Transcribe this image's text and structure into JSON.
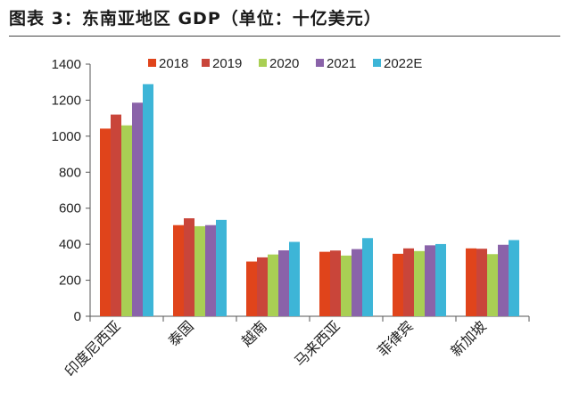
{
  "figure_title": "图表 3：东南亚地区 GDP（单位：十亿美元）",
  "chart_data": {
    "type": "bar",
    "categories": [
      "印度尼西亚",
      "泰国",
      "越南",
      "马来西亚",
      "菲律宾",
      "新加坡"
    ],
    "series": [
      {
        "name": "2018",
        "color": "#e0441b",
        "values": [
          1042,
          506,
          304,
          358,
          347,
          377
        ]
      },
      {
        "name": "2019",
        "color": "#c9453a",
        "values": [
          1120,
          544,
          327,
          365,
          377,
          375
        ]
      },
      {
        "name": "2020",
        "color": "#a9cf54",
        "values": [
          1060,
          500,
          343,
          337,
          362,
          345
        ]
      },
      {
        "name": "2021",
        "color": "#8a63a9",
        "values": [
          1186,
          506,
          366,
          373,
          394,
          397
        ]
      },
      {
        "name": "2022E",
        "color": "#3db5d7",
        "values": [
          1289,
          535,
          413,
          434,
          401,
          423
        ]
      }
    ],
    "y_ticks": [
      0,
      200,
      400,
      600,
      800,
      1000,
      1200,
      1400
    ],
    "ylim": [
      0,
      1400
    ],
    "legend_position": "top",
    "grid": false
  }
}
